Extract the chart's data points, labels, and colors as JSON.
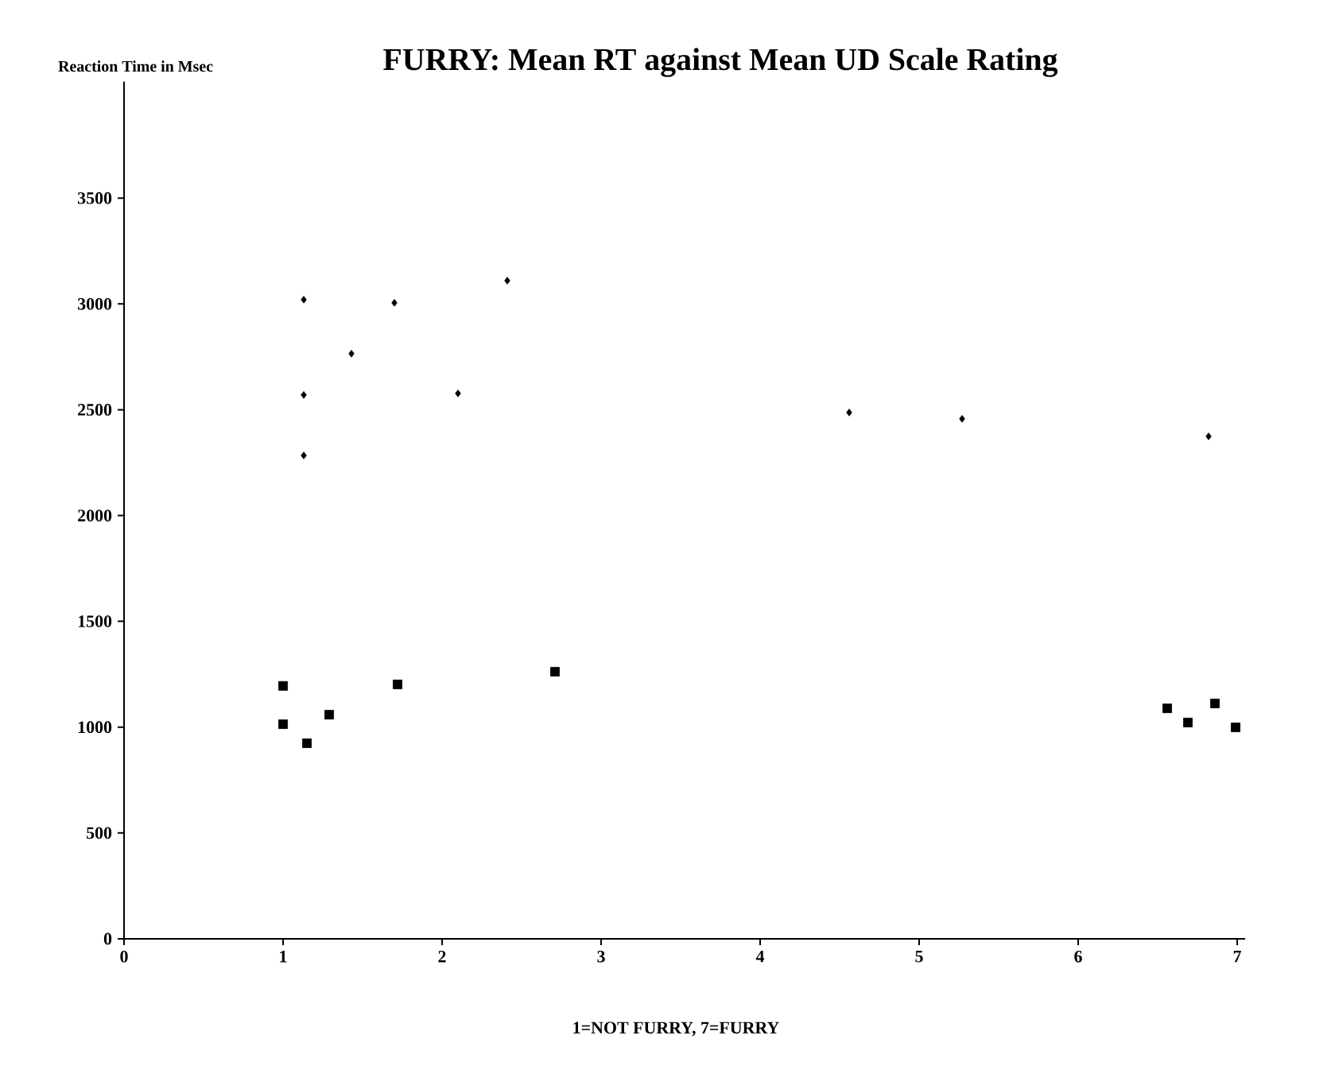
{
  "chart_data": {
    "type": "scatter",
    "title": "FURRY: Mean RT against Mean UD Scale Rating",
    "xlabel": "1=NOT FURRY, 7=FURRY",
    "ylabel": "Reaction Time in Msec",
    "xlim": [
      0,
      7.05
    ],
    "ylim": [
      0,
      4050
    ],
    "xticks": [
      0,
      1,
      2,
      3,
      4,
      5,
      6,
      7
    ],
    "yticks": [
      0,
      500,
      1000,
      1500,
      2000,
      2500,
      3000,
      3500
    ],
    "series": [
      {
        "color": "#000000",
        "marker": "diamond",
        "x": [
          1.13,
          1.43,
          1.13,
          1.13,
          1.7,
          2.1,
          2.41,
          4.56,
          5.27,
          6.82
        ],
        "values": [
          3020,
          2765,
          2570,
          2284,
          3005,
          2577,
          3110,
          2487,
          2457,
          2374
        ]
      },
      {
        "color": "#000000",
        "marker": "square",
        "x": [
          1.0,
          1.0,
          1.15,
          1.29,
          1.72,
          2.71,
          6.56,
          6.69,
          6.86,
          6.99
        ],
        "values": [
          1195,
          1014,
          924,
          1059,
          1202,
          1262,
          1089,
          1022,
          1112,
          999
        ]
      }
    ]
  }
}
